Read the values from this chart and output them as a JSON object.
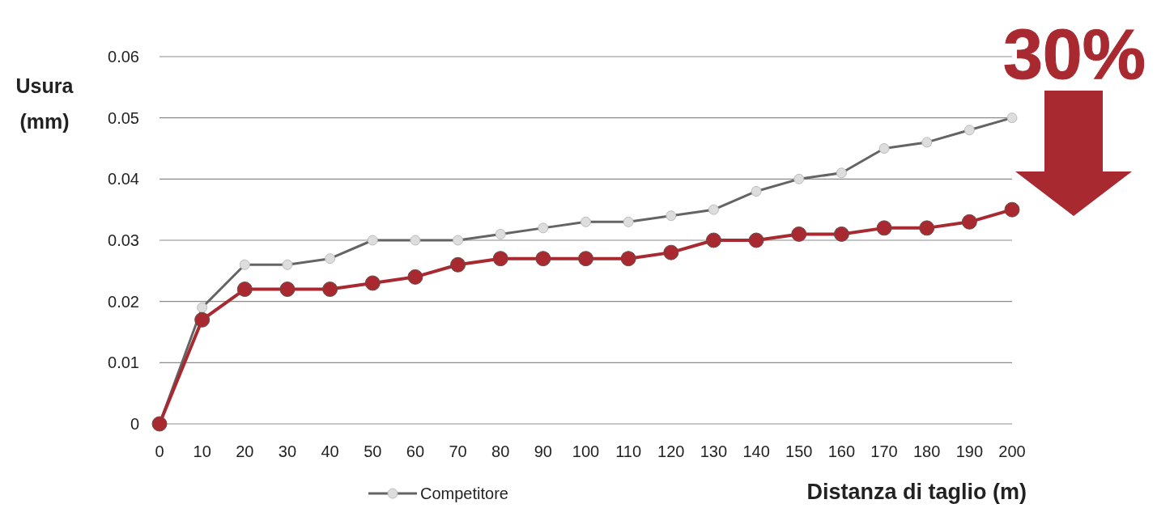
{
  "chart_data": {
    "type": "line",
    "xlabel": "Distanza di taglio (m)",
    "ylabel": "Usura (mm)",
    "x": [
      0,
      10,
      20,
      30,
      40,
      50,
      60,
      70,
      80,
      90,
      100,
      110,
      120,
      130,
      140,
      150,
      160,
      170,
      180,
      190,
      200
    ],
    "series": [
      {
        "color": "#a82a30",
        "values": [
          0,
          0.017,
          0.022,
          0.022,
          0.022,
          0.023,
          0.024,
          0.026,
          0.027,
          0.027,
          0.027,
          0.027,
          0.028,
          0.03,
          0.03,
          0.031,
          0.031,
          0.032,
          0.032,
          0.033,
          0.035
        ]
      },
      {
        "name": "Competitore",
        "color": "#646464",
        "values": [
          0,
          0.019,
          0.026,
          0.026,
          0.027,
          0.03,
          0.03,
          0.03,
          0.031,
          0.032,
          0.033,
          0.033,
          0.034,
          0.035,
          0.038,
          0.04,
          0.041,
          0.045,
          0.046,
          0.048,
          0.05
        ]
      }
    ],
    "xlim": [
      0,
      200
    ],
    "xticks": [
      0,
      10,
      20,
      30,
      40,
      50,
      60,
      70,
      80,
      90,
      100,
      110,
      120,
      130,
      140,
      150,
      160,
      170,
      180,
      190,
      200
    ],
    "ylim": [
      0,
      0.06
    ],
    "yticks": [
      0,
      0.01,
      0.02,
      0.03,
      0.04,
      0.05,
      0.06
    ],
    "grid": "y",
    "legend": "bottom",
    "marker": "circle",
    "line_style": "solid",
    "annotations": [
      "30%"
    ]
  }
}
